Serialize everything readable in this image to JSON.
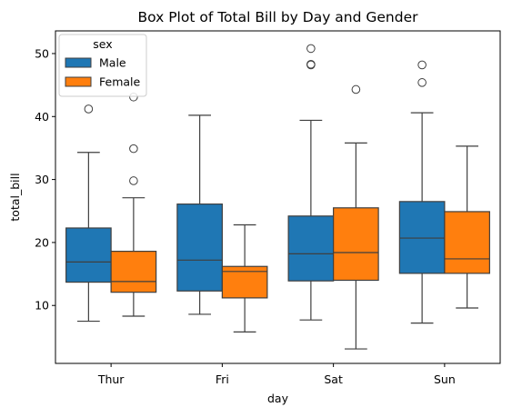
{
  "chart_data": {
    "type": "box",
    "title": "Box Plot of Total Bill by Day and Gender",
    "xlabel": "day",
    "ylabel": "total_bill",
    "categories": [
      "Thur",
      "Fri",
      "Sat",
      "Sun"
    ],
    "ylim": [
      0.8,
      53.6
    ],
    "yticks": [
      10,
      20,
      30,
      40,
      50
    ],
    "legend": {
      "title": "sex",
      "position": "top-left"
    },
    "series": [
      {
        "name": "Male",
        "color": "#1f77b4",
        "boxes": [
          {
            "whisker_low": 7.5,
            "q1": 13.7,
            "median": 16.9,
            "q3": 22.3,
            "whisker_high": 34.3,
            "outliers": [
              41.2
            ]
          },
          {
            "whisker_low": 8.6,
            "q1": 12.3,
            "median": 17.2,
            "q3": 26.1,
            "whisker_high": 40.2,
            "outliers": []
          },
          {
            "whisker_low": 7.7,
            "q1": 13.9,
            "median": 18.2,
            "q3": 24.2,
            "whisker_high": 39.4,
            "outliers": [
              48.2,
              48.3,
              50.8
            ]
          },
          {
            "whisker_low": 7.2,
            "q1": 15.1,
            "median": 20.7,
            "q3": 26.5,
            "whisker_high": 40.6,
            "outliers": [
              45.4,
              48.2
            ]
          }
        ]
      },
      {
        "name": "Female",
        "color": "#ff7f0e",
        "boxes": [
          {
            "whisker_low": 8.3,
            "q1": 12.1,
            "median": 13.8,
            "q3": 18.6,
            "whisker_high": 27.1,
            "outliers": [
              29.8,
              34.9,
              43.1
            ]
          },
          {
            "whisker_low": 5.8,
            "q1": 11.2,
            "median": 15.4,
            "q3": 16.2,
            "whisker_high": 22.8,
            "outliers": []
          },
          {
            "whisker_low": 3.1,
            "q1": 14.0,
            "median": 18.4,
            "q3": 25.5,
            "whisker_high": 35.8,
            "outliers": [
              44.3
            ]
          },
          {
            "whisker_low": 9.6,
            "q1": 15.1,
            "median": 17.4,
            "q3": 24.9,
            "whisker_high": 35.3,
            "outliers": []
          }
        ]
      }
    ]
  }
}
